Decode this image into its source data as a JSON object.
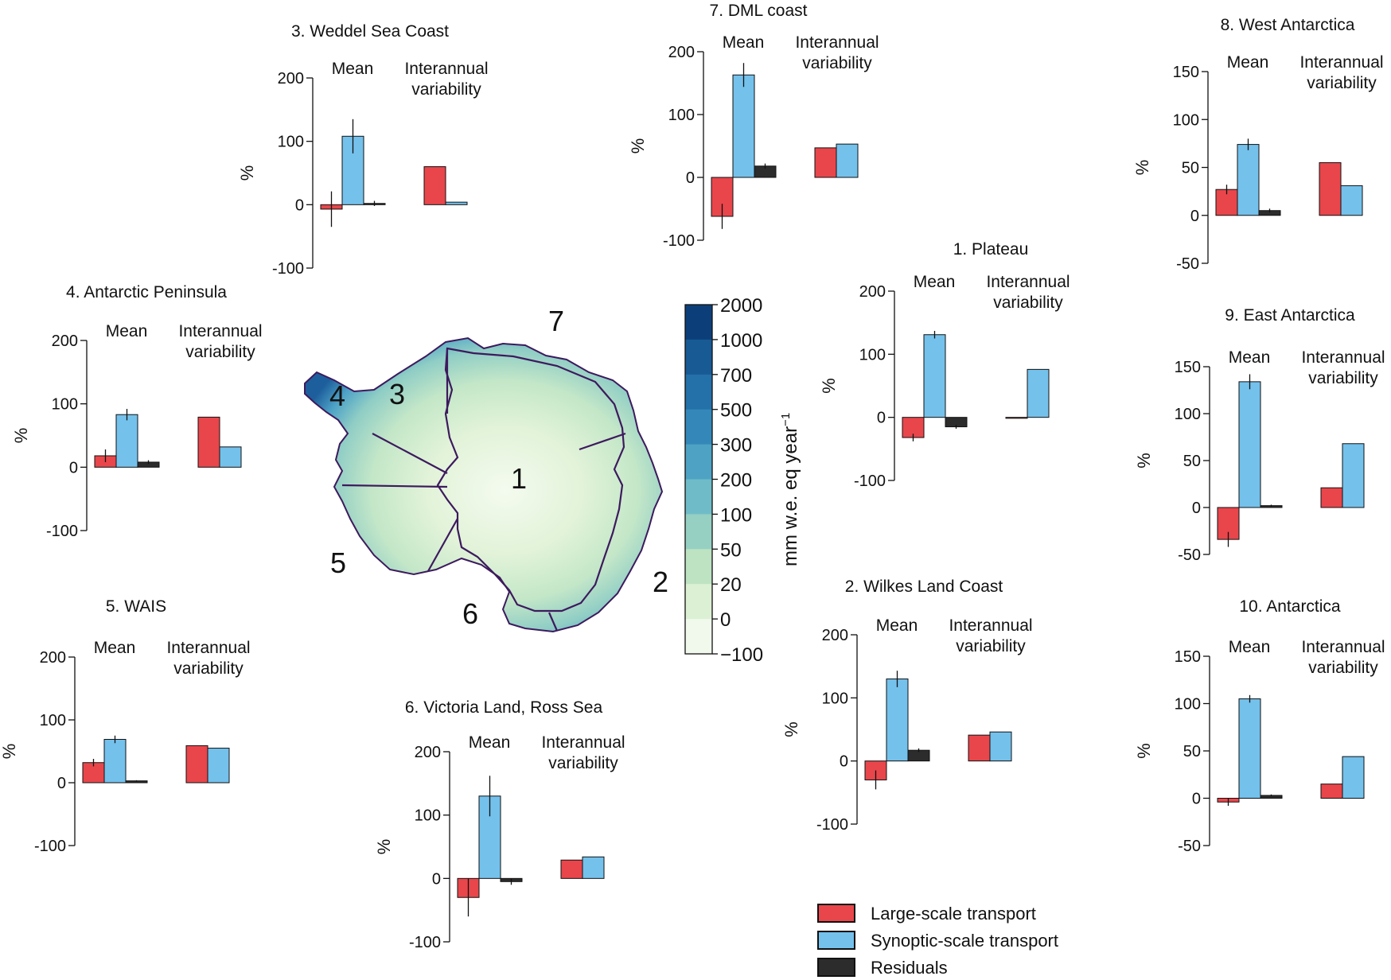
{
  "colors": {
    "large_scale": "#e8464b",
    "synoptic": "#74c1ec",
    "residuals": "#2c2c2c"
  },
  "legend": {
    "items": [
      {
        "label": "Large-scale transport",
        "color": "#e8464b"
      },
      {
        "label": "Synoptic-scale transport",
        "color": "#74c1ec"
      },
      {
        "label": "Residuals",
        "color": "#2c2c2c"
      }
    ]
  },
  "map": {
    "region_numbers": [
      "1",
      "2",
      "3",
      "4",
      "5",
      "6",
      "7"
    ],
    "colorbar_label": "mm w.e. eq year",
    "colorbar_label_sup": "−1",
    "colorbar_ticks": [
      "2000",
      "1000",
      "700",
      "500",
      "300",
      "200",
      "100",
      "50",
      "20",
      "0",
      "−100"
    ],
    "colorbar_colors": [
      "#0c3f7a",
      "#175a94",
      "#2470a9",
      "#3488b9",
      "#4ea3c5",
      "#6fbcc8",
      "#96d0c3",
      "#bde3c2",
      "#dcf0d3",
      "#f1f9ec"
    ]
  },
  "chart_data": [
    {
      "type": "bar",
      "title": "3. Weddel Sea Coast",
      "ylabel": "%",
      "ylim": [
        -100,
        200
      ],
      "yticks": [
        "200",
        "100",
        "0",
        "-100"
      ],
      "tick_values": [
        200,
        100,
        0,
        -100
      ],
      "groups": [
        "Mean",
        "Interannual variability"
      ],
      "series": [
        {
          "name": "Large-scale transport",
          "mean": -7,
          "mean_err": 28,
          "variability": 60
        },
        {
          "name": "Synoptic-scale transport",
          "mean": 108,
          "mean_err": 27,
          "variability": 4
        },
        {
          "name": "Residuals",
          "mean": 2,
          "mean_err": 4
        }
      ]
    },
    {
      "type": "bar",
      "title": "7. DML coast",
      "ylabel": "%",
      "ylim": [
        -100,
        200
      ],
      "yticks": [
        "200",
        "100",
        "0",
        "-100"
      ],
      "tick_values": [
        200,
        100,
        0,
        -100
      ],
      "groups": [
        "Mean",
        "Interannual variability"
      ],
      "series": [
        {
          "name": "Large-scale transport",
          "mean": -62,
          "mean_err": 20,
          "variability": 47
        },
        {
          "name": "Synoptic-scale transport",
          "mean": 163,
          "mean_err": 19,
          "variability": 53
        },
        {
          "name": "Residuals",
          "mean": 18,
          "mean_err": 4
        }
      ]
    },
    {
      "type": "bar",
      "title": "8. West Antarctica",
      "ylabel": "%",
      "ylim": [
        -50,
        150
      ],
      "yticks": [
        "150",
        "100",
        "50",
        "0",
        "-50"
      ],
      "tick_values": [
        150,
        100,
        50,
        0,
        -50
      ],
      "groups": [
        "Mean",
        "Interannual variability"
      ],
      "series": [
        {
          "name": "Large-scale transport",
          "mean": 27,
          "mean_err": 5,
          "variability": 55
        },
        {
          "name": "Synoptic-scale transport",
          "mean": 74,
          "mean_err": 6,
          "variability": 31
        },
        {
          "name": "Residuals",
          "mean": 5,
          "mean_err": 2
        }
      ]
    },
    {
      "type": "bar",
      "title": "4. Antarctic Peninsula",
      "ylabel": "%",
      "ylim": [
        -100,
        200
      ],
      "yticks": [
        "200",
        "100",
        "0",
        "-100"
      ],
      "tick_values": [
        200,
        100,
        0,
        -100
      ],
      "groups": [
        "Mean",
        "Interannual variability"
      ],
      "series": [
        {
          "name": "Large-scale transport",
          "mean": 18,
          "mean_err": 10,
          "variability": 79
        },
        {
          "name": "Synoptic-scale transport",
          "mean": 83,
          "mean_err": 9,
          "variability": 32
        },
        {
          "name": "Residuals",
          "mean": 8,
          "mean_err": 3
        }
      ]
    },
    {
      "type": "bar",
      "title": "1. Plateau",
      "ylabel": "%",
      "ylim": [
        -100,
        200
      ],
      "yticks": [
        "200",
        "100",
        "0",
        "-100"
      ],
      "tick_values": [
        200,
        100,
        0,
        -100
      ],
      "groups": [
        "Mean",
        "Interannual variability"
      ],
      "series": [
        {
          "name": "Large-scale transport",
          "mean": -32,
          "mean_err": 6,
          "variability": 0
        },
        {
          "name": "Synoptic-scale transport",
          "mean": 131,
          "mean_err": 6,
          "variability": 76
        },
        {
          "name": "Residuals",
          "mean": -15,
          "mean_err": 3
        }
      ]
    },
    {
      "type": "bar",
      "title": "9. East Antarctica",
      "ylabel": "%",
      "ylim": [
        -50,
        150
      ],
      "yticks": [
        "150",
        "100",
        "50",
        "0",
        "-50"
      ],
      "tick_values": [
        150,
        100,
        50,
        0,
        -50
      ],
      "groups": [
        "Mean",
        "Interannual variability"
      ],
      "series": [
        {
          "name": "Large-scale transport",
          "mean": -34,
          "mean_err": 8,
          "variability": 21
        },
        {
          "name": "Synoptic-scale transport",
          "mean": 134,
          "mean_err": 8,
          "variability": 68
        },
        {
          "name": "Residuals",
          "mean": 2,
          "mean_err": 1
        }
      ]
    },
    {
      "type": "bar",
      "title": "5. WAIS",
      "ylabel": "%",
      "ylim": [
        -100,
        200
      ],
      "yticks": [
        "200",
        "100",
        "0",
        "-100"
      ],
      "tick_values": [
        200,
        100,
        0,
        -100
      ],
      "groups": [
        "Mean",
        "Interannual variability"
      ],
      "series": [
        {
          "name": "Large-scale transport",
          "mean": 32,
          "mean_err": 6,
          "variability": 59
        },
        {
          "name": "Synoptic-scale transport",
          "mean": 69,
          "mean_err": 6,
          "variability": 55
        },
        {
          "name": "Residuals",
          "mean": 3,
          "mean_err": 1
        }
      ]
    },
    {
      "type": "bar",
      "title": "6. Victoria Land, Ross Sea",
      "ylabel": "%",
      "ylim": [
        -100,
        200
      ],
      "yticks": [
        "200",
        "100",
        "0",
        "-100"
      ],
      "tick_values": [
        200,
        100,
        0,
        -100
      ],
      "groups": [
        "Mean",
        "Interannual variability"
      ],
      "series": [
        {
          "name": "Large-scale transport",
          "mean": -30,
          "mean_err": 30,
          "variability": 29
        },
        {
          "name": "Synoptic-scale transport",
          "mean": 130,
          "mean_err": 32,
          "variability": 34
        },
        {
          "name": "Residuals",
          "mean": -5,
          "mean_err": 5
        }
      ]
    },
    {
      "type": "bar",
      "title": "2. Wilkes Land Coast",
      "ylabel": "%",
      "ylim": [
        -100,
        200
      ],
      "yticks": [
        "200",
        "100",
        "0",
        "-100"
      ],
      "tick_values": [
        200,
        100,
        0,
        -100
      ],
      "groups": [
        "Mean",
        "Interannual variability"
      ],
      "series": [
        {
          "name": "Large-scale transport",
          "mean": -30,
          "mean_err": 15,
          "variability": 41
        },
        {
          "name": "Synoptic-scale transport",
          "mean": 130,
          "mean_err": 13,
          "variability": 46
        },
        {
          "name": "Residuals",
          "mean": 17,
          "mean_err": 3
        }
      ]
    },
    {
      "type": "bar",
      "title": "10. Antarctica",
      "ylabel": "%",
      "ylim": [
        -50,
        150
      ],
      "yticks": [
        "150",
        "100",
        "50",
        "0",
        "-50"
      ],
      "tick_values": [
        150,
        100,
        50,
        0,
        -50
      ],
      "groups": [
        "Mean",
        "Interannual variability"
      ],
      "series": [
        {
          "name": "Large-scale transport",
          "mean": -4,
          "mean_err": 4,
          "variability": 15
        },
        {
          "name": "Synoptic-scale transport",
          "mean": 105,
          "mean_err": 4,
          "variability": 44
        },
        {
          "name": "Residuals",
          "mean": 3,
          "mean_err": 1
        }
      ]
    }
  ]
}
